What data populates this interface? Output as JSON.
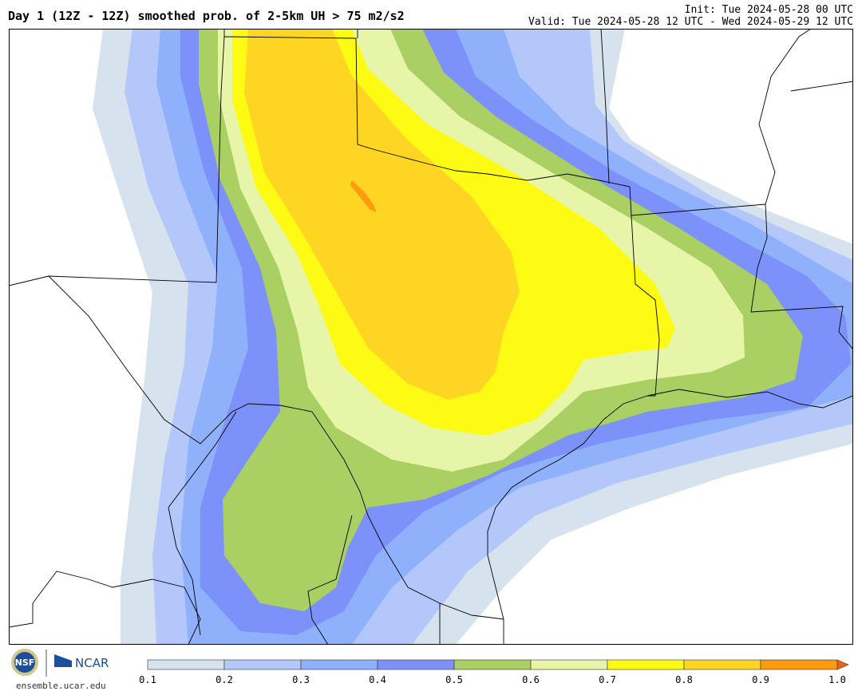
{
  "header": {
    "title": "Day 1 (12Z - 12Z) smoothed prob. of 2-5km UH > 75 m2/s2",
    "init": "Init: Tue 2024-05-28 00 UTC",
    "valid": "Valid: Tue 2024-05-28 12 UTC - Wed 2024-05-29 12 UTC"
  },
  "map": {
    "contour_colors": {
      "0.1-0.2": "#d6e2ee",
      "0.2-0.3": "#b3c7fb",
      "0.3-0.4": "#8fb0fb",
      "0.4-0.5": "#7c91fa",
      "0.5-0.6": "#aacf62",
      "0.6-0.7": "#e7f5a8",
      "0.7-0.8": "#fdfb14",
      "0.8-0.9": "#fed523",
      "0.9-1.0": "#fd9a0e"
    },
    "boundary_color": "#000000"
  },
  "footer": {
    "logo_left": "NSF",
    "logo_right": "NCAR",
    "site": "ensemble.ucar.edu"
  },
  "colorbar": {
    "ticks": [
      "0.1",
      "0.2",
      "0.3",
      "0.4",
      "0.5",
      "0.6",
      "0.7",
      "0.8",
      "0.9",
      "1.0"
    ],
    "colors": [
      "#d6e2ee",
      "#b3c7fb",
      "#8fb0fb",
      "#7c91fa",
      "#aacf62",
      "#e7f5a8",
      "#fdfb14",
      "#fed523",
      "#fd9a0e"
    ]
  }
}
